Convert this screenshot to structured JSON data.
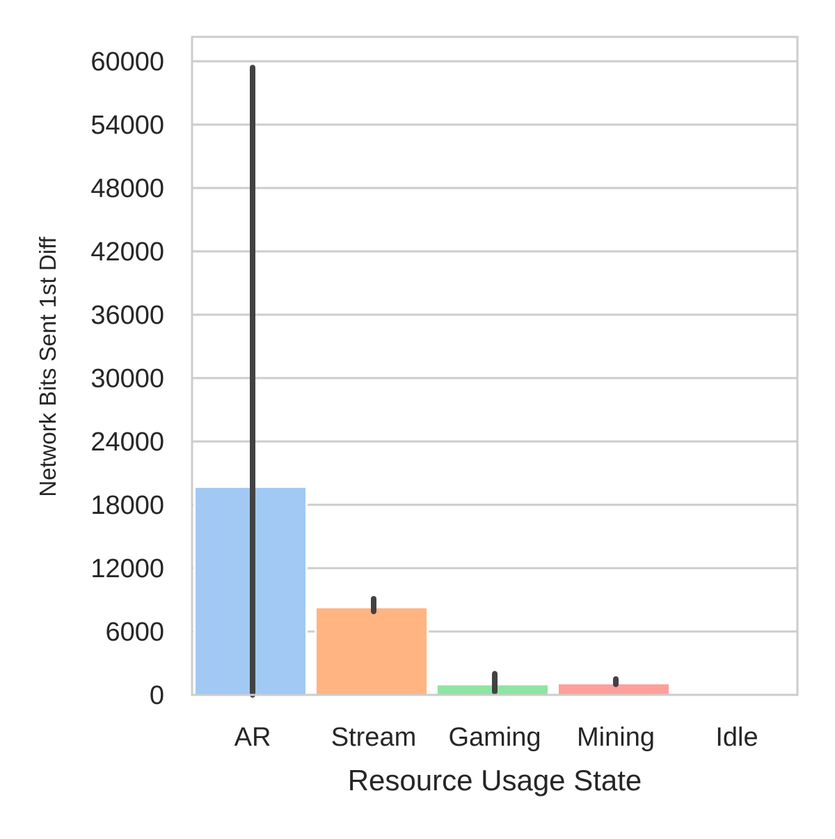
{
  "chart_data": {
    "type": "bar",
    "xlabel": "Resource Usage State",
    "ylabel": "Network Bits Sent 1st Diff",
    "categories": [
      "AR",
      "Stream",
      "Gaming",
      "Mining",
      "Idle"
    ],
    "values": [
      19700,
      8300,
      1000,
      1100,
      0
    ],
    "error_low": [
      0,
      7900,
      300,
      1000,
      0
    ],
    "error_high": [
      59400,
      9100,
      2000,
      1500,
      0
    ],
    "ylim": [
      0,
      60000
    ],
    "yticks": [
      "0",
      "6000",
      "12000",
      "18000",
      "24000",
      "30000",
      "36000",
      "42000",
      "48000",
      "54000",
      "60000"
    ],
    "colors": [
      "#a1c9f4",
      "#ffb482",
      "#8de5a1",
      "#ff9f9b",
      "#d0bbff"
    ],
    "error_color": "#424242",
    "grid": true
  }
}
